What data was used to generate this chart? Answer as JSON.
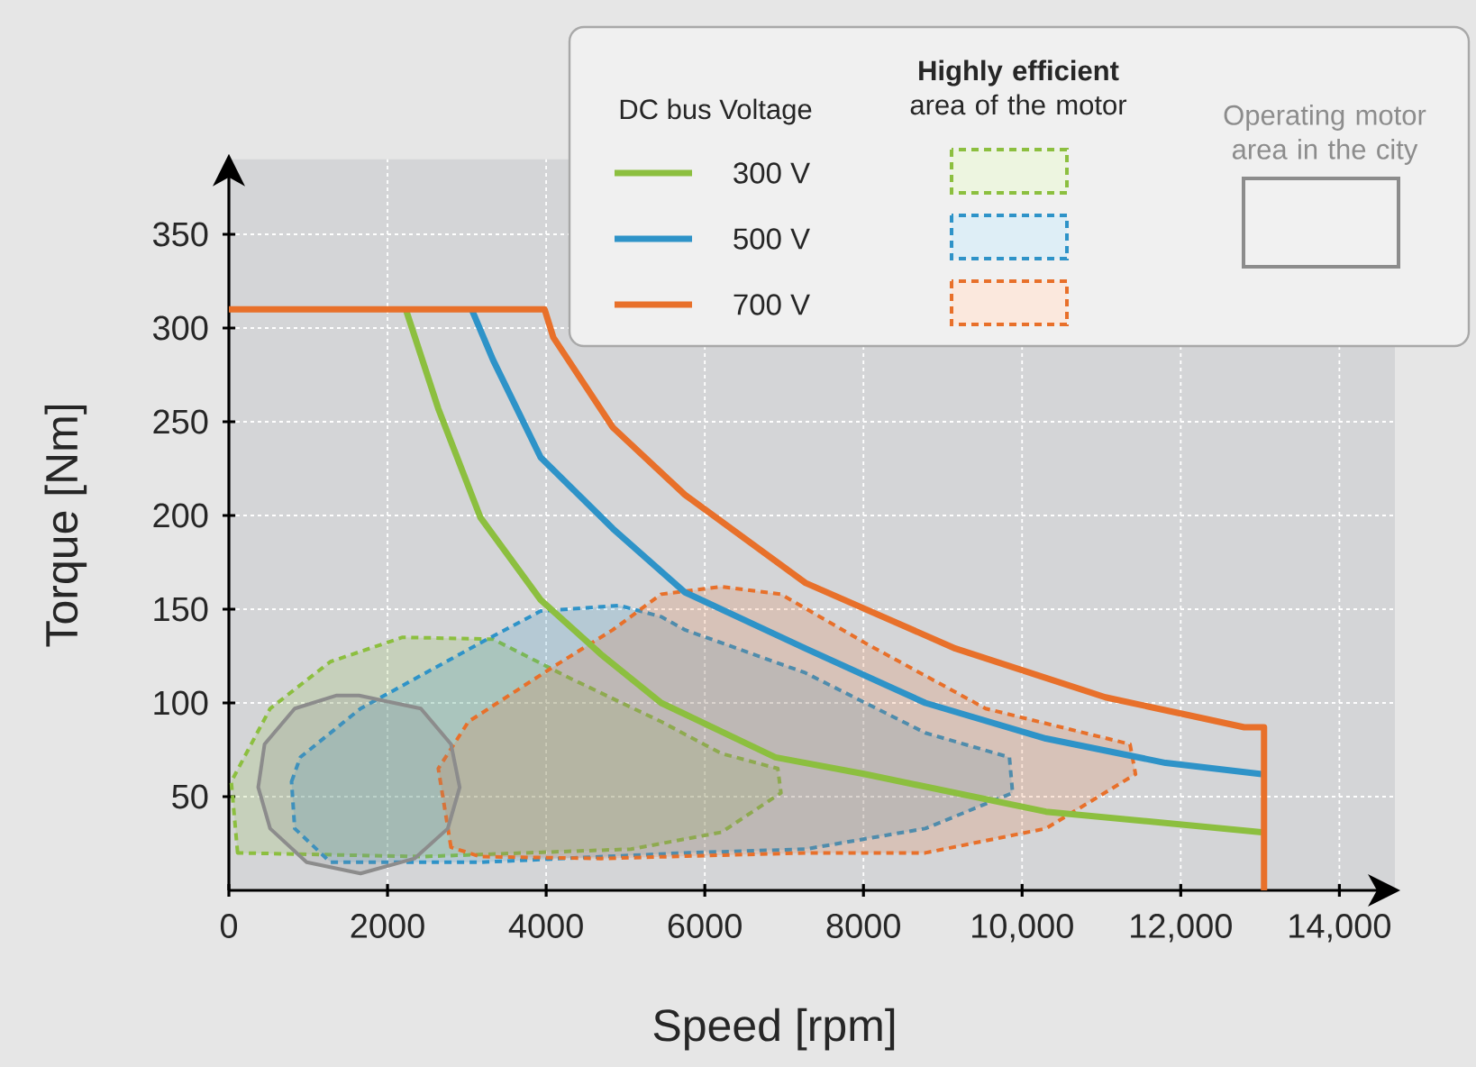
{
  "chart_data": {
    "type": "line",
    "xlabel": "Speed [rpm]",
    "ylabel": "Torque [Nm]",
    "legend_title": "DC bus Voltage",
    "annotations": [
      "**Highly efficient** area of the motor"
    ],
    "xlim": [
      0,
      14700
    ],
    "ylim": [
      0,
      390
    ],
    "xticks": [
      0,
      2000,
      4000,
      6000,
      8000,
      {
        "value": 10000,
        "label": "10,000"
      },
      {
        "value": 12000,
        "label": "12,000"
      },
      {
        "value": 14000,
        "label": "14,000"
      }
    ],
    "yticks": [
      50,
      100,
      150,
      200,
      250,
      300,
      350
    ],
    "grid": true,
    "legend": "top",
    "marker": "none",
    "series": [
      {
        "type": "area",
        "line_style": "dashed",
        "color": "#8cbf3f",
        "x": [
          110,
          30,
          520,
          1280,
          2190,
          3330,
          4310,
          5450,
          6210,
          6920,
          6960,
          6210,
          5070,
          2420
        ],
        "values": [
          20,
          58,
          97,
          122,
          135,
          134,
          113,
          90,
          73,
          65,
          52,
          31,
          22,
          18
        ]
      },
      {
        "type": "area",
        "line_style": "dashed",
        "color": "#2e93c8",
        "x": [
          790,
          900,
          1660,
          3170,
          3930,
          4920,
          5450,
          5750,
          7270,
          8780,
          9840,
          9880,
          8780,
          7270,
          5750,
          3170,
          1280,
          830
        ],
        "values": [
          58,
          71,
          97,
          132,
          149,
          152,
          146,
          139,
          116,
          84,
          71,
          52,
          33,
          22,
          20,
          15,
          15,
          33
        ]
      },
      {
        "type": "area",
        "line_style": "dashed",
        "color": "#e8702a",
        "x": [
          2800,
          2640,
          3020,
          4080,
          4840,
          5450,
          6210,
          6960,
          8020,
          9540,
          11360,
          11430,
          10300,
          8780,
          7270,
          4690,
          3170
        ],
        "values": [
          23,
          65,
          90,
          119,
          139,
          158,
          162,
          158,
          132,
          97,
          78,
          62,
          33,
          20,
          20,
          17,
          18
        ]
      },
      {
        "type": "area",
        "line_style": "solid",
        "name": "Operating motor area in the city",
        "color": "#8c8c8c",
        "x": [
          1640,
          2420,
          2800,
          2910,
          2760,
          2340,
          1660,
          980,
          520,
          370,
          450,
          830,
          1360
        ],
        "values": [
          104,
          97,
          78,
          55,
          33,
          17,
          9,
          15,
          33,
          55,
          78,
          97,
          104
        ]
      },
      {
        "name": "300 V",
        "color": "#8cbf3f",
        "x": [
          2230,
          2640,
          3170,
          3930,
          4690,
          5450,
          5750,
          6890,
          8020,
          10300,
          13020
        ],
        "values": [
          310,
          257,
          199,
          155,
          126,
          100,
          94,
          71,
          62,
          42,
          31
        ]
      },
      {
        "name": "500 V",
        "color": "#2e93c8",
        "x": [
          3060,
          3330,
          3930,
          4840,
          5750,
          7270,
          8780,
          10300,
          11810,
          13020
        ],
        "values": [
          310,
          283,
          231,
          193,
          159,
          129,
          100,
          81,
          68,
          62
        ]
      },
      {
        "name": "700 V",
        "color": "#e8702a",
        "x": [
          0,
          3980,
          4090,
          4840,
          5750,
          7270,
          9160,
          11050,
          12040,
          12800,
          13050,
          13050
        ],
        "values": [
          310,
          310,
          295,
          247,
          211,
          164,
          129,
          103,
          94,
          87,
          87,
          0
        ]
      }
    ]
  }
}
